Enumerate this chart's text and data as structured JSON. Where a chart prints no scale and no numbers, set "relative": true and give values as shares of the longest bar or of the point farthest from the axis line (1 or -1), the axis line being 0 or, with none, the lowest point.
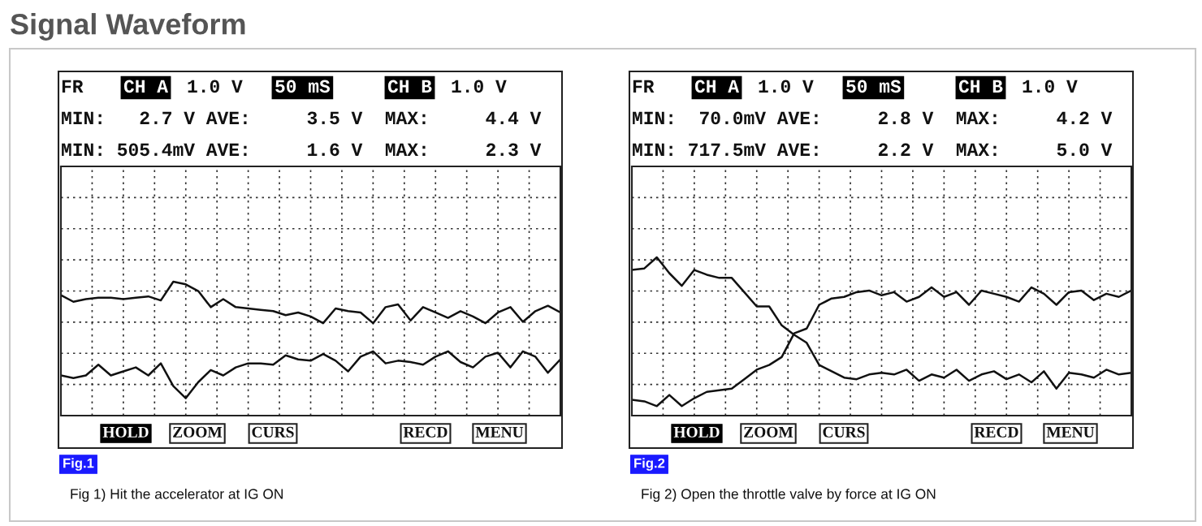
{
  "chart_data": [
    {
      "type": "line",
      "relative": true,
      "grid": true,
      "title": "Fig.1",
      "subtitle": "Fig 1) Hit the accelerator at IG ON",
      "categories": [
        null,
        null,
        null,
        null,
        null,
        null,
        null,
        null,
        null,
        null,
        null,
        null,
        null,
        null,
        null,
        null,
        null,
        null,
        null,
        null,
        null,
        null,
        null,
        null,
        null,
        null,
        null,
        null,
        null,
        null,
        null,
        null,
        null,
        null,
        null,
        null,
        null,
        null,
        null,
        null,
        null
      ],
      "series": [
        {
          "color": "#111111",
          "values": [
            0.9,
            0.85,
            0.87,
            0.88,
            0.88,
            0.87,
            0.88,
            0.89,
            0.86,
            1.0,
            0.98,
            0.93,
            0.81,
            0.87,
            0.81,
            0.8,
            0.79,
            0.78,
            0.75,
            0.77,
            0.74,
            0.69,
            0.8,
            0.78,
            0.77,
            0.69,
            0.81,
            0.83,
            0.71,
            0.81,
            0.77,
            0.73,
            0.78,
            0.74,
            0.69,
            0.77,
            0.81,
            0.7,
            0.78,
            0.82,
            0.77
          ]
        },
        {
          "color": "#111111",
          "values": [
            0.3,
            0.28,
            0.3,
            0.38,
            0.3,
            0.33,
            0.36,
            0.3,
            0.39,
            0.22,
            0.13,
            0.25,
            0.34,
            0.3,
            0.36,
            0.39,
            0.39,
            0.38,
            0.45,
            0.42,
            0.41,
            0.46,
            0.41,
            0.33,
            0.44,
            0.48,
            0.39,
            0.41,
            0.4,
            0.38,
            0.44,
            0.48,
            0.4,
            0.36,
            0.44,
            0.47,
            0.36,
            0.48,
            0.44,
            0.32,
            0.42
          ]
        }
      ],
      "annotations": [
        "FR",
        "CH A",
        "1.0 V",
        "50 mS",
        "CH B",
        "1.0 V",
        "MIN:   2.7 V AVE:     3.5 V  MAX:     4.4 V",
        "MIN: 505.4mV AVE:     1.6 V  MAX:     2.3 V",
        "HOLD",
        "ZOOM",
        "CURS",
        "RECD",
        "MENU",
        "Signal Waveform"
      ]
    },
    {
      "type": "line",
      "relative": true,
      "grid": true,
      "title": "Fig.2",
      "subtitle": "Fig 2) Open the throttle valve by force at IG ON",
      "categories": [
        null,
        null,
        null,
        null,
        null,
        null,
        null,
        null,
        null,
        null,
        null,
        null,
        null,
        null,
        null,
        null,
        null,
        null,
        null,
        null,
        null,
        null,
        null,
        null,
        null,
        null,
        null,
        null,
        null,
        null,
        null,
        null,
        null,
        null,
        null,
        null,
        null,
        null,
        null,
        null,
        null
      ],
      "series": [
        {
          "color": "#111111",
          "values": [
            0.92,
            0.93,
            1.0,
            0.9,
            0.82,
            0.92,
            0.89,
            0.87,
            0.87,
            0.78,
            0.69,
            0.69,
            0.57,
            0.51,
            0.46,
            0.32,
            0.28,
            0.24,
            0.23,
            0.26,
            0.27,
            0.26,
            0.29,
            0.22,
            0.26,
            0.24,
            0.29,
            0.22,
            0.26,
            0.28,
            0.23,
            0.26,
            0.21,
            0.28,
            0.17,
            0.27,
            0.26,
            0.24,
            0.29,
            0.26,
            0.27
          ]
        },
        {
          "color": "#111111",
          "values": [
            0.1,
            0.09,
            0.06,
            0.13,
            0.06,
            0.11,
            0.15,
            0.16,
            0.17,
            0.23,
            0.29,
            0.32,
            0.37,
            0.52,
            0.55,
            0.7,
            0.74,
            0.75,
            0.78,
            0.79,
            0.76,
            0.78,
            0.72,
            0.75,
            0.81,
            0.75,
            0.78,
            0.7,
            0.79,
            0.77,
            0.75,
            0.72,
            0.81,
            0.77,
            0.7,
            0.78,
            0.79,
            0.73,
            0.77,
            0.75,
            0.79
          ]
        }
      ],
      "annotations": [
        "FR",
        "CH A",
        "1.0 V",
        "50 mS",
        "CH B",
        "1.0 V",
        "MIN:  70.0mV AVE:     2.8 V  MAX:     4.2 V",
        "MIN: 717.5mV AVE:     2.2 V  MAX:     5.0 V",
        "HOLD",
        "ZOOM",
        "CURS",
        "RECD",
        "MENU"
      ]
    }
  ]
}
